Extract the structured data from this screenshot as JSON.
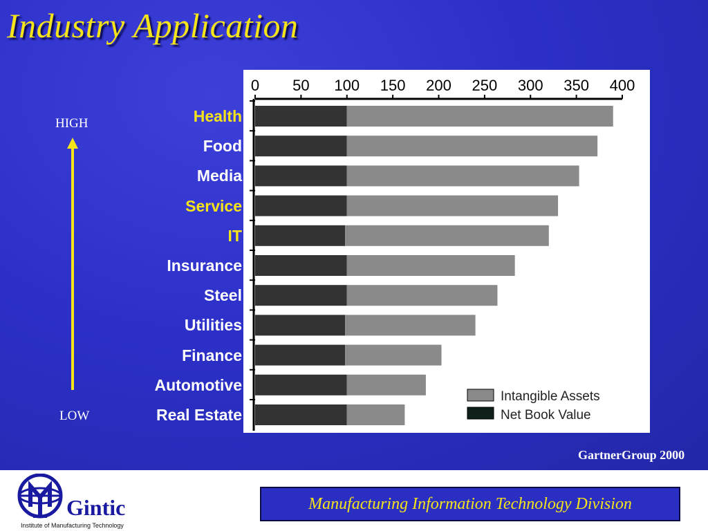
{
  "slide": {
    "title": "Industry Application",
    "high_label": "HIGH",
    "low_label": "LOW",
    "source": "GartnerGroup 2000",
    "footer": {
      "org_name": "Gintic",
      "org_sub": "Institute of Manufacturing Technology",
      "division": "Manufacturing Information Technology Division"
    },
    "colors": {
      "background": "#2b2fc4",
      "title": "#f5e41a",
      "highlight": "#f5e41a",
      "intangible": "#8a8a8a",
      "net_book": "#333333"
    }
  },
  "chart_data": {
    "type": "bar",
    "orientation": "horizontal",
    "stacked": true,
    "categories": [
      "Health",
      "Food",
      "Media",
      "Service",
      "IT",
      "Insurance",
      "Steel",
      "Utilities",
      "Finance",
      "Automotive",
      "Real Estate"
    ],
    "highlighted": [
      "Health",
      "Service",
      "IT"
    ],
    "series": [
      {
        "name": "Net Book Value",
        "values": [
          100,
          100,
          100,
          100,
          98,
          100,
          100,
          98,
          98,
          100,
          100
        ]
      },
      {
        "name": "Intangible Assets",
        "values": [
          290,
          273,
          253,
          230,
          222,
          183,
          164,
          142,
          105,
          86,
          63
        ]
      }
    ],
    "x_ticks": [
      0,
      50,
      100,
      150,
      200,
      250,
      300,
      350,
      400
    ],
    "xlim": [
      0,
      400
    ],
    "legend": [
      "Intangible Assets",
      "Net Book Value"
    ],
    "legend_position": "bottom-right"
  }
}
